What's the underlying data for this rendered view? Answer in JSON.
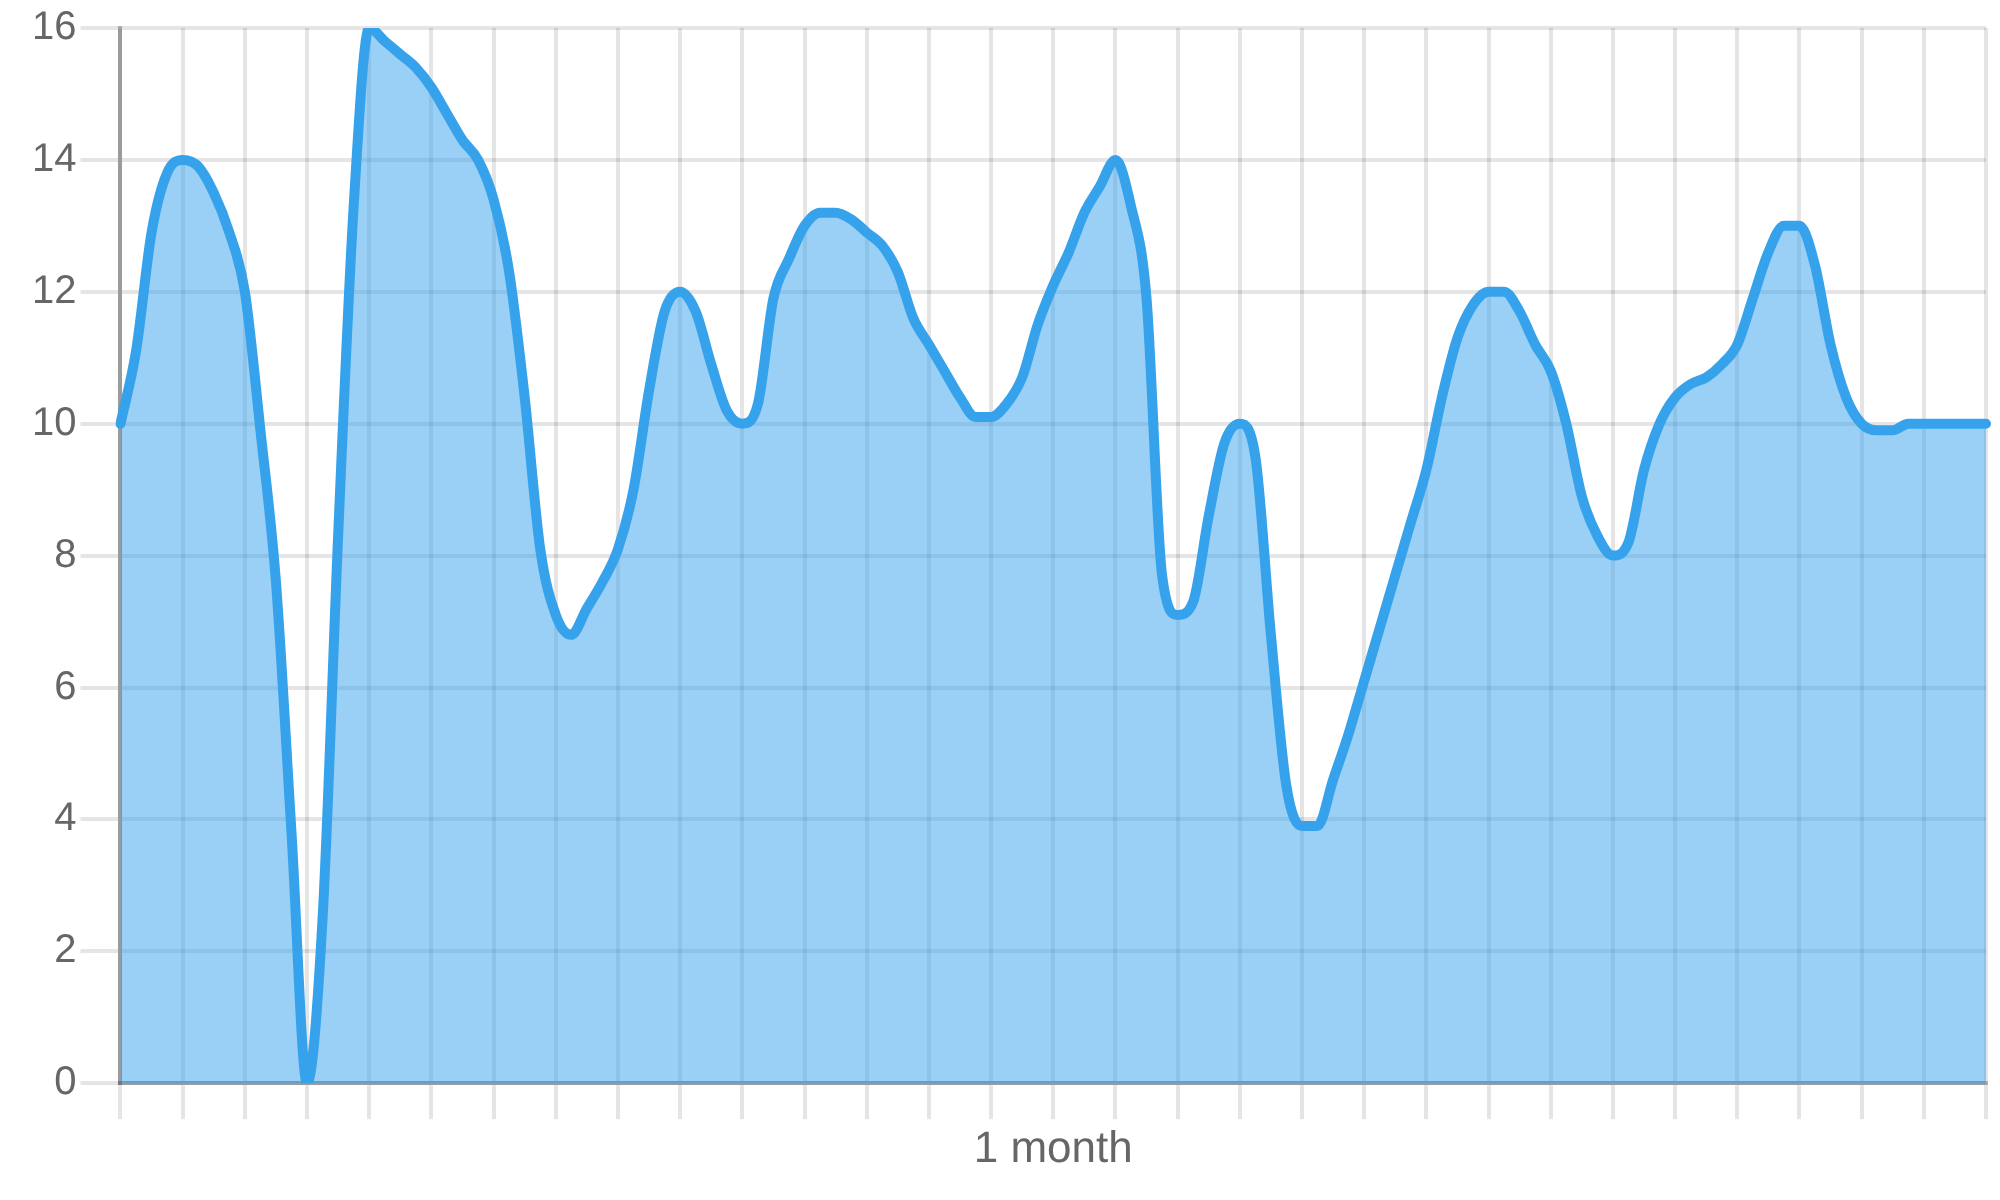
{
  "chart_data": {
    "type": "area",
    "xlabel": "1 month",
    "categories": [
      null,
      null,
      null,
      null,
      null,
      null,
      null,
      null,
      null,
      null,
      null,
      null,
      null,
      null,
      null,
      null,
      null,
      null,
      null,
      null,
      null,
      null,
      null,
      null,
      null,
      null,
      null,
      null,
      null,
      null,
      null,
      null,
      null,
      null,
      null,
      null,
      null,
      null,
      null,
      null,
      null,
      null,
      null,
      null,
      null,
      null,
      null,
      null,
      null,
      null,
      null,
      null,
      null,
      null,
      null,
      null,
      null,
      null,
      null,
      null,
      null,
      null,
      null,
      null,
      null,
      null,
      null,
      null,
      null,
      null,
      null,
      null,
      null,
      null,
      null,
      null,
      null,
      null,
      null,
      null,
      null,
      null,
      null,
      null,
      null,
      null,
      null,
      null,
      null,
      null,
      null,
      null,
      null,
      null,
      null,
      null,
      null,
      null,
      null,
      null,
      null,
      null,
      null,
      null,
      null,
      null,
      null,
      null,
      null,
      null,
      null,
      null,
      null,
      null,
      null,
      null,
      null,
      null,
      null,
      null,
      null
    ],
    "series": [
      {
        "color": "#36a2eb",
        "values": [
          10.0,
          11.1,
          12.9,
          13.8,
          14.0,
          13.9,
          13.5,
          12.9,
          12.0,
          9.9,
          7.6,
          3.8,
          0,
          2.5,
          8.3,
          13.3,
          16,
          15.8,
          15.6,
          15.4,
          15.1,
          14.7,
          14.3,
          14.0,
          13.4,
          12.3,
          10.4,
          8.1,
          7.1,
          6.8,
          7.2,
          7.6,
          8.1,
          9.0,
          10.5,
          11.7,
          12.0,
          11.7,
          10.9,
          10.2,
          10.0,
          10.3,
          11.9,
          12.5,
          13.0,
          13.2,
          13.2,
          13.1,
          12.9,
          12.7,
          12.3,
          11.6,
          11.2,
          10.8,
          10.4,
          10.1,
          10.1,
          10.3,
          10.7,
          11.5,
          12.1,
          12.6,
          13.2,
          13.6,
          14.0,
          13.3,
          11.9,
          7.7,
          7.1,
          7.3,
          8.6,
          9.7,
          10.0,
          9.5,
          6.8,
          4.5,
          3.9,
          3.9,
          4.6,
          5.3,
          6.1,
          6.9,
          7.7,
          8.5,
          9.3,
          10.4,
          11.3,
          11.8,
          12.0,
          12.0,
          11.7,
          11.2,
          10.8,
          10.0,
          8.9,
          8.3,
          8.0,
          8.2,
          9.3,
          10.0,
          10.4,
          10.6,
          10.7,
          10.9,
          11.2,
          11.9,
          12.6,
          13.0,
          13.0,
          12.4,
          11.2,
          10.4,
          10.0,
          9.9,
          9.9,
          10.0,
          10.0,
          10.0,
          10.0,
          10.0,
          10.0
        ]
      }
    ],
    "ylim": [
      0,
      16
    ],
    "yticks": [
      0,
      2,
      4,
      6,
      8,
      10,
      12,
      14,
      16
    ],
    "grid": true,
    "legend": false,
    "marker": "none"
  }
}
